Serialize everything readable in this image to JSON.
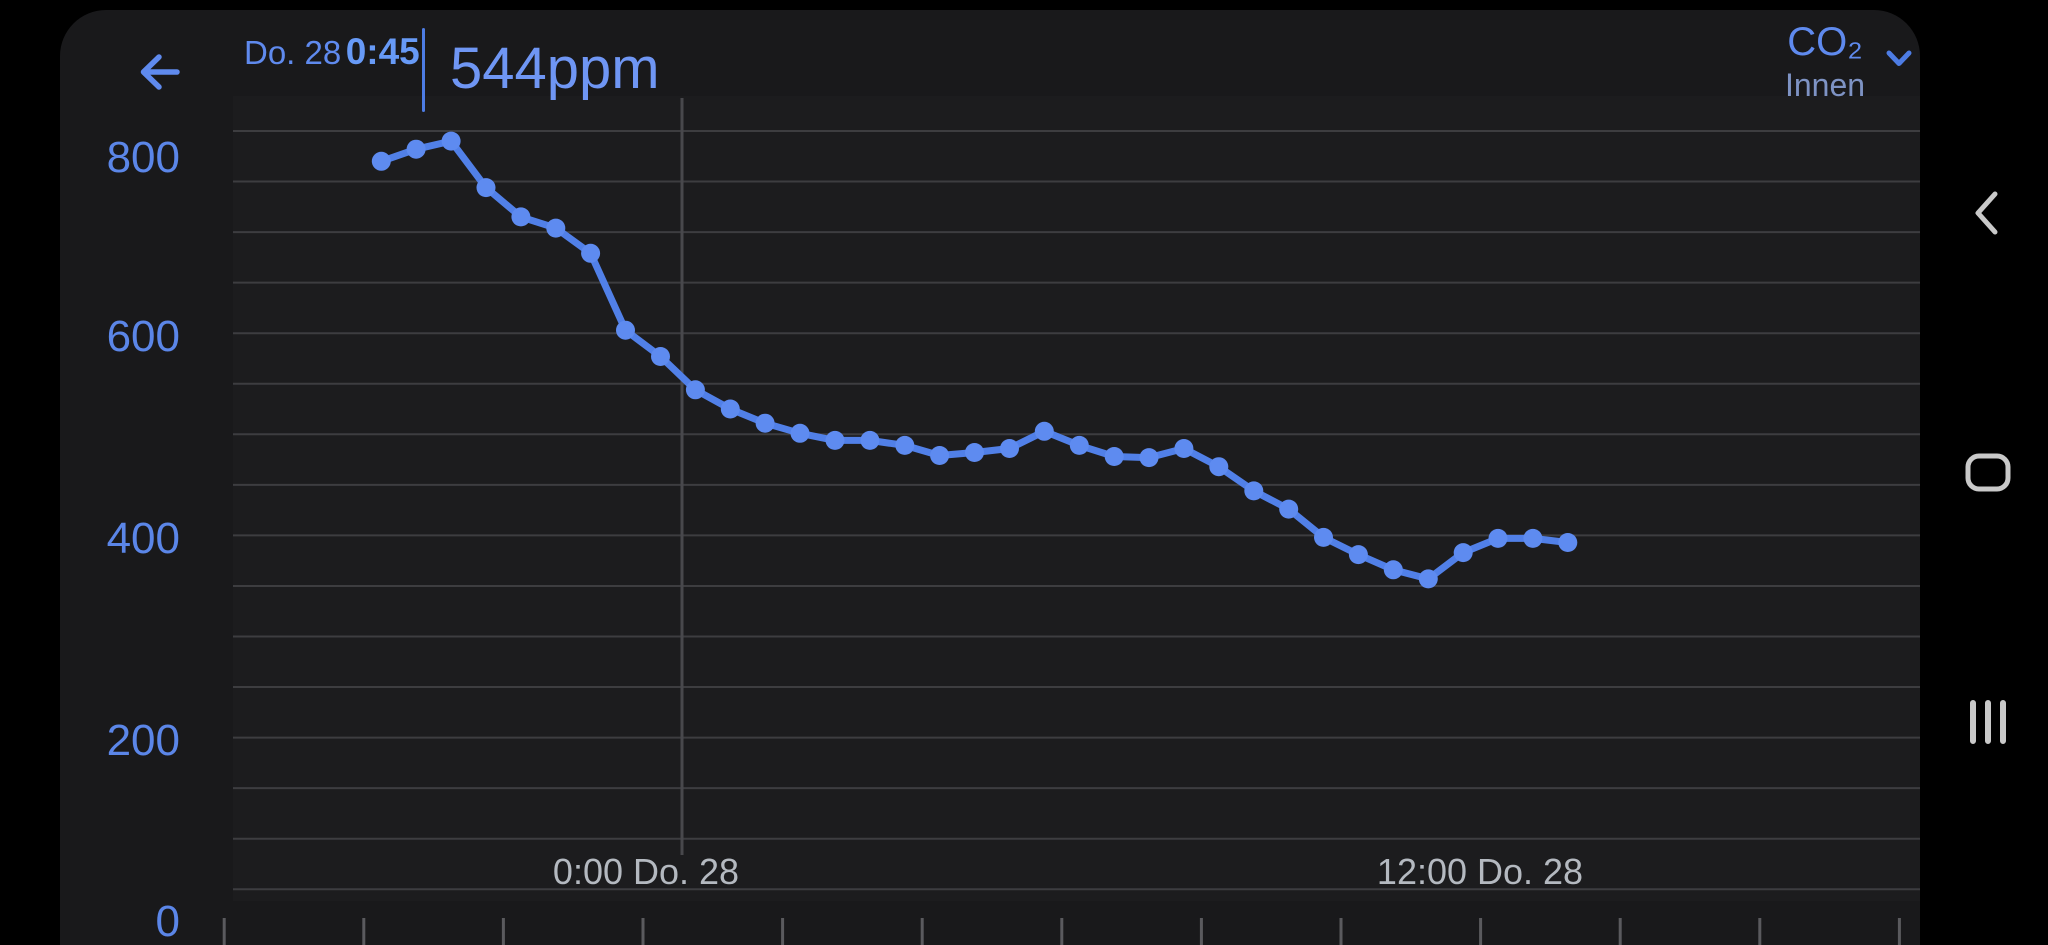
{
  "header": {
    "date": "Do. 28",
    "time": "0:45",
    "reading": "544ppm",
    "metric": "CO₂",
    "location": "Innen"
  },
  "nav_icons": [
    "back-chevron",
    "home-outline",
    "recents-bars"
  ],
  "chart_data": {
    "type": "line",
    "title": "CO₂ Innen",
    "unit": "ppm",
    "y_axis_labels": [
      "800",
      "600",
      "400",
      "200",
      "0"
    ],
    "y_axis_label_values": [
      800,
      600,
      400,
      200,
      0
    ],
    "y_gridline_step_ppm": 50,
    "y_gridline_range_ppm": [
      50,
      800
    ],
    "x_tick_labels": [
      "0:00 Do. 28",
      "12:00 Do. 28"
    ],
    "x_minor_tick_step_hours": 2,
    "series_interval_minutes": 30,
    "selected": {
      "day": "Do. 28",
      "time": "0:45",
      "value_ppm": 544
    },
    "points": [
      {
        "h": -3.75,
        "ppm": 770
      },
      {
        "h": -3.25,
        "ppm": 782
      },
      {
        "h": -2.75,
        "ppm": 790
      },
      {
        "h": -2.25,
        "ppm": 744
      },
      {
        "h": -1.75,
        "ppm": 715
      },
      {
        "h": -1.25,
        "ppm": 704
      },
      {
        "h": -0.75,
        "ppm": 679
      },
      {
        "h": -0.25,
        "ppm": 603
      },
      {
        "h": 0.25,
        "ppm": 577
      },
      {
        "h": 0.75,
        "ppm": 544
      },
      {
        "h": 1.25,
        "ppm": 525
      },
      {
        "h": 1.75,
        "ppm": 511
      },
      {
        "h": 2.25,
        "ppm": 501
      },
      {
        "h": 2.75,
        "ppm": 494
      },
      {
        "h": 3.25,
        "ppm": 494
      },
      {
        "h": 3.75,
        "ppm": 489
      },
      {
        "h": 4.25,
        "ppm": 479
      },
      {
        "h": 4.75,
        "ppm": 482
      },
      {
        "h": 5.25,
        "ppm": 486
      },
      {
        "h": 5.75,
        "ppm": 503
      },
      {
        "h": 6.25,
        "ppm": 489
      },
      {
        "h": 6.75,
        "ppm": 478
      },
      {
        "h": 7.25,
        "ppm": 477
      },
      {
        "h": 7.75,
        "ppm": 486
      },
      {
        "h": 8.25,
        "ppm": 468
      },
      {
        "h": 8.75,
        "ppm": 444
      },
      {
        "h": 9.25,
        "ppm": 426
      },
      {
        "h": 9.75,
        "ppm": 398
      },
      {
        "h": 10.25,
        "ppm": 381
      },
      {
        "h": 10.75,
        "ppm": 366
      },
      {
        "h": 11.25,
        "ppm": 357
      },
      {
        "h": 11.75,
        "ppm": 383
      },
      {
        "h": 12.25,
        "ppm": 397
      },
      {
        "h": 12.75,
        "ppm": 397
      },
      {
        "h": 13.25,
        "ppm": 393
      }
    ]
  },
  "colors": {
    "bezel": "#000000",
    "app_background": "#19191b",
    "plot_background": "#1c1c1e",
    "gridline": "#3d3d40",
    "cursor_line": "#48484c",
    "tick": "#5a5a5e",
    "line_blue": "#5180e8",
    "dot_blue": "#5e8bf0",
    "label_blue": "#5b86e8",
    "x_label_gray": "#b4b9c0",
    "nav_icon_gray": "#c9c9c9"
  }
}
